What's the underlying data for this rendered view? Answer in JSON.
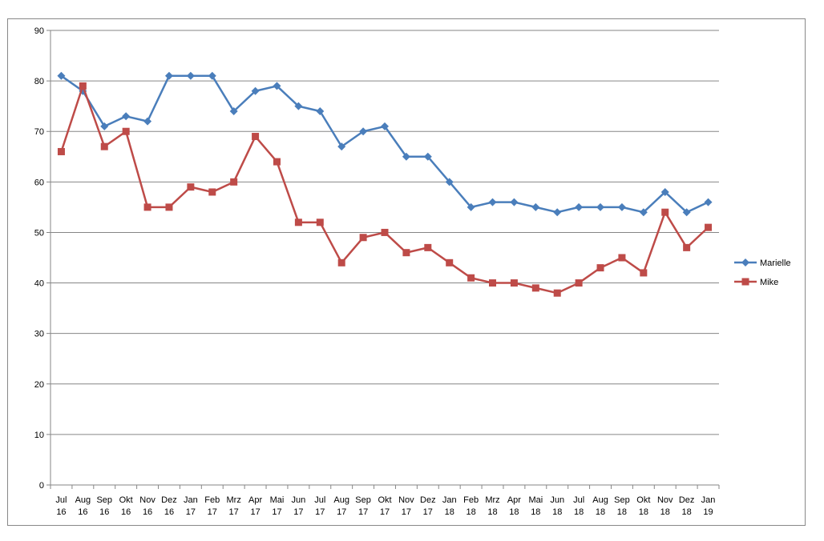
{
  "chart_data": {
    "type": "line",
    "title": "",
    "xlabel": "",
    "ylabel": "",
    "ylim": [
      0,
      90
    ],
    "yticks": [
      0,
      10,
      20,
      30,
      40,
      50,
      60,
      70,
      80,
      90
    ],
    "grid": "horizontal",
    "legend_position": "right",
    "categories": [
      [
        "Jul",
        "16"
      ],
      [
        "Aug",
        "16"
      ],
      [
        "Sep",
        "16"
      ],
      [
        "Okt",
        "16"
      ],
      [
        "Nov",
        "16"
      ],
      [
        "Dez",
        "16"
      ],
      [
        "Jan",
        "17"
      ],
      [
        "Feb",
        "17"
      ],
      [
        "Mrz",
        "17"
      ],
      [
        "Apr",
        "17"
      ],
      [
        "Mai",
        "17"
      ],
      [
        "Jun",
        "17"
      ],
      [
        "Jul",
        "17"
      ],
      [
        "Aug",
        "17"
      ],
      [
        "Sep",
        "17"
      ],
      [
        "Okt",
        "17"
      ],
      [
        "Nov",
        "17"
      ],
      [
        "Dez",
        "17"
      ],
      [
        "Jan",
        "18"
      ],
      [
        "Feb",
        "18"
      ],
      [
        "Mrz",
        "18"
      ],
      [
        "Apr",
        "18"
      ],
      [
        "Mai",
        "18"
      ],
      [
        "Jun",
        "18"
      ],
      [
        "Jul",
        "18"
      ],
      [
        "Aug",
        "18"
      ],
      [
        "Sep",
        "18"
      ],
      [
        "Okt",
        "18"
      ],
      [
        "Nov",
        "18"
      ],
      [
        "Dez",
        "18"
      ],
      [
        "Jan",
        "19"
      ]
    ],
    "series": [
      {
        "name": "Marielle",
        "color": "#4a7ebb",
        "marker": "diamond",
        "values": [
          81,
          78,
          71,
          73,
          72,
          81,
          81,
          81,
          74,
          78,
          79,
          75,
          74,
          67,
          70,
          71,
          65,
          65,
          60,
          55,
          56,
          56,
          55,
          54,
          55,
          55,
          55,
          54,
          58,
          54,
          56
        ]
      },
      {
        "name": "Mike",
        "color": "#be4b48",
        "marker": "square",
        "values": [
          66,
          79,
          67,
          70,
          55,
          55,
          59,
          58,
          60,
          69,
          64,
          52,
          52,
          44,
          49,
          50,
          46,
          47,
          44,
          41,
          40,
          40,
          39,
          38,
          40,
          43,
          45,
          42,
          54,
          47,
          51
        ]
      }
    ]
  }
}
